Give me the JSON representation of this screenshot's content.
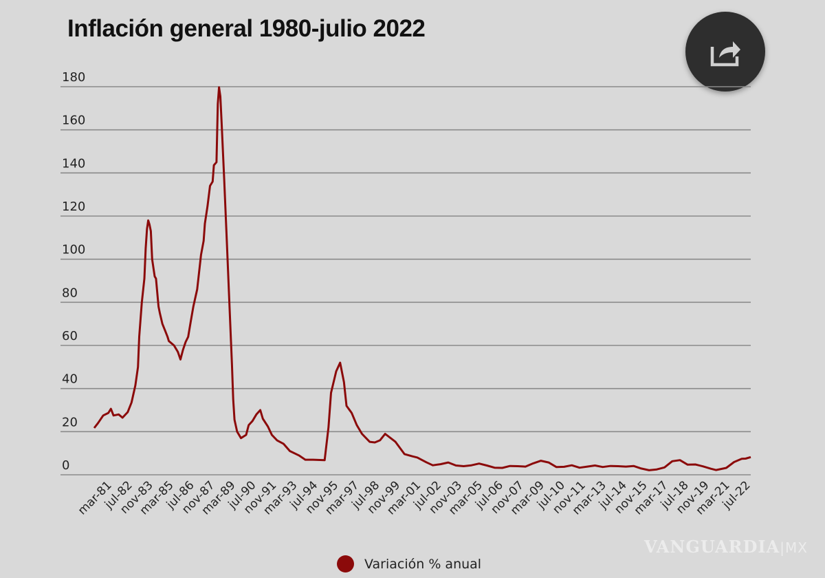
{
  "chart_data": {
    "type": "line",
    "title": "Inflación general 1980-julio 2022",
    "xlabel": "",
    "ylabel": "",
    "ylim": [
      0,
      180
    ],
    "yticks": [
      0,
      20,
      40,
      60,
      80,
      100,
      120,
      140,
      160,
      180
    ],
    "grid": true,
    "legend_position": "bottom",
    "xrange": [
      "1980-01",
      "2022-07"
    ],
    "xtick_labels": [
      "mar-81",
      "jul-82",
      "nov-83",
      "mar-85",
      "jul-86",
      "nov-87",
      "mar-89",
      "jul-90",
      "nov-91",
      "mar-93",
      "jul-94",
      "nov-95",
      "mar-97",
      "jul-98",
      "nov-99",
      "mar-01",
      "jul-02",
      "nov-03",
      "mar-05",
      "jul-06",
      "nov-07",
      "mar-09",
      "jul-10",
      "nov-11",
      "mar-13",
      "jul-14",
      "nov-15",
      "mar-17",
      "jul-18",
      "nov-19",
      "mar-21",
      "jul-22"
    ],
    "series": [
      {
        "name": "Variación % anual",
        "color": "#8b0a0a",
        "points": [
          [
            "1980-01",
            21.7
          ],
          [
            "1980-04",
            24
          ],
          [
            "1980-08",
            27.5
          ],
          [
            "1980-12",
            28.7
          ],
          [
            "1981-02",
            30.6
          ],
          [
            "1981-04",
            27.5
          ],
          [
            "1981-08",
            28
          ],
          [
            "1981-11",
            26.5
          ],
          [
            "1982-02",
            28.4
          ],
          [
            "1982-03",
            29
          ],
          [
            "1982-06",
            33.5
          ],
          [
            "1982-09",
            41.5
          ],
          [
            "1982-11",
            50
          ],
          [
            "1982-12",
            64
          ],
          [
            "1983-02",
            80
          ],
          [
            "1983-04",
            91
          ],
          [
            "1983-05",
            105
          ],
          [
            "1983-06",
            114
          ],
          [
            "1983-07",
            118
          ],
          [
            "1983-08",
            116
          ],
          [
            "1983-09",
            113
          ],
          [
            "1983-10",
            100
          ],
          [
            "1983-12",
            92
          ],
          [
            "1984-01",
            91
          ],
          [
            "1984-03",
            78
          ],
          [
            "1984-04",
            75
          ],
          [
            "1984-06",
            70
          ],
          [
            "1984-08",
            67
          ],
          [
            "1984-10",
            64
          ],
          [
            "1984-11",
            62
          ],
          [
            "1985-01",
            61
          ],
          [
            "1985-03",
            60
          ],
          [
            "1985-06",
            57
          ],
          [
            "1985-08",
            53.5
          ],
          [
            "1985-10",
            58
          ],
          [
            "1985-12",
            61.6
          ],
          [
            "1986-02",
            64
          ],
          [
            "1986-04",
            71
          ],
          [
            "1986-06",
            78
          ],
          [
            "1986-09",
            86
          ],
          [
            "1986-12",
            102
          ],
          [
            "1987-02",
            108.5
          ],
          [
            "1987-03",
            116.5
          ],
          [
            "1987-05",
            124.5
          ],
          [
            "1987-07",
            134
          ],
          [
            "1987-09",
            136
          ],
          [
            "1987-10",
            143.6
          ],
          [
            "1987-12",
            145
          ],
          [
            "1988-01",
            172
          ],
          [
            "1988-02",
            179.7
          ],
          [
            "1988-03",
            175.5
          ],
          [
            "1988-04",
            163
          ],
          [
            "1988-06",
            137
          ],
          [
            "1988-08",
            108.5
          ],
          [
            "1988-10",
            80
          ],
          [
            "1988-12",
            51
          ],
          [
            "1989-01",
            35
          ],
          [
            "1989-02",
            25.5
          ],
          [
            "1989-04",
            20
          ],
          [
            "1989-07",
            17
          ],
          [
            "1989-11",
            18.5
          ],
          [
            "1990-01",
            23
          ],
          [
            "1990-04",
            25
          ],
          [
            "1990-07",
            28
          ],
          [
            "1990-10",
            30
          ],
          [
            "1990-12",
            26
          ],
          [
            "1991-04",
            22.3
          ],
          [
            "1991-07",
            18.5
          ],
          [
            "1991-11",
            16
          ],
          [
            "1992-04",
            14.4
          ],
          [
            "1992-09",
            11
          ],
          [
            "1993-04",
            9
          ],
          [
            "1993-09",
            7
          ],
          [
            "1994-03",
            7
          ],
          [
            "1994-12",
            6.8
          ],
          [
            "1995-03",
            22
          ],
          [
            "1995-05",
            38
          ],
          [
            "1995-09",
            48
          ],
          [
            "1995-12",
            52
          ],
          [
            "1996-03",
            43
          ],
          [
            "1996-05",
            32
          ],
          [
            "1996-09",
            28.7
          ],
          [
            "1997-01",
            23
          ],
          [
            "1997-05",
            19
          ],
          [
            "1997-11",
            15.3
          ],
          [
            "1998-03",
            15
          ],
          [
            "1998-07",
            16
          ],
          [
            "1998-11",
            19
          ],
          [
            "1999-07",
            15.3
          ],
          [
            "2000-02",
            9.6
          ],
          [
            "2000-08",
            8.6
          ],
          [
            "2000-12",
            8
          ],
          [
            "2001-07",
            5.8
          ],
          [
            "2001-12",
            4.4
          ],
          [
            "2002-06",
            4.9
          ],
          [
            "2002-12",
            5.7
          ],
          [
            "2003-06",
            4.3
          ],
          [
            "2003-12",
            4.0
          ],
          [
            "2004-06",
            4.4
          ],
          [
            "2004-12",
            5.2
          ],
          [
            "2005-06",
            4.3
          ],
          [
            "2005-12",
            3.3
          ],
          [
            "2006-06",
            3.2
          ],
          [
            "2006-12",
            4.1
          ],
          [
            "2007-06",
            4.0
          ],
          [
            "2007-12",
            3.8
          ],
          [
            "2008-06",
            5.3
          ],
          [
            "2008-12",
            6.5
          ],
          [
            "2009-06",
            5.7
          ],
          [
            "2009-12",
            3.6
          ],
          [
            "2010-06",
            3.7
          ],
          [
            "2010-12",
            4.4
          ],
          [
            "2011-06",
            3.3
          ],
          [
            "2011-12",
            3.8
          ],
          [
            "2012-06",
            4.3
          ],
          [
            "2012-12",
            3.6
          ],
          [
            "2013-06",
            4.1
          ],
          [
            "2013-12",
            4.0
          ],
          [
            "2014-06",
            3.8
          ],
          [
            "2014-12",
            4.1
          ],
          [
            "2015-06",
            2.9
          ],
          [
            "2015-12",
            2.1
          ],
          [
            "2016-06",
            2.5
          ],
          [
            "2016-12",
            3.4
          ],
          [
            "2017-06",
            6.3
          ],
          [
            "2017-12",
            6.8
          ],
          [
            "2018-06",
            4.7
          ],
          [
            "2018-12",
            4.8
          ],
          [
            "2019-06",
            3.9
          ],
          [
            "2019-12",
            2.8
          ],
          [
            "2020-04",
            2.2
          ],
          [
            "2020-12",
            3.2
          ],
          [
            "2021-06",
            5.9
          ],
          [
            "2021-12",
            7.4
          ],
          [
            "2022-03",
            7.5
          ],
          [
            "2022-07",
            8.2
          ]
        ]
      }
    ]
  },
  "share_button": {
    "icon": "share-icon"
  },
  "legend": {
    "label": "Variación % anual",
    "color": "#8b0a0a"
  },
  "watermark": {
    "brand": "VANGUARDIA",
    "suffix": "MX"
  }
}
